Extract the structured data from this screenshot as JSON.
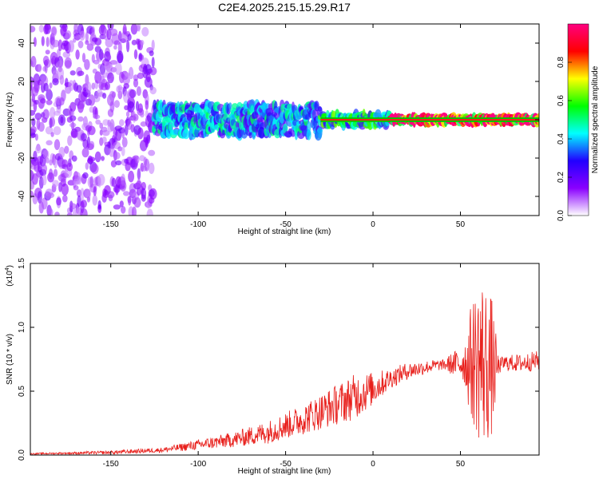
{
  "figure": {
    "title": "C2E4.2025.215.15.29.R17"
  },
  "chart_data": [
    {
      "type": "heatmap",
      "xlabel": "Height of straight line (km)",
      "ylabel": "Frequency (Hz)",
      "xlim": [
        -196,
        95
      ],
      "ylim": [
        -50,
        50
      ],
      "x_ticks": [
        "-150",
        "-100",
        "-50",
        "0",
        "50"
      ],
      "x_tick_values": [
        -150,
        -100,
        -50,
        0,
        50
      ],
      "y_ticks": [
        "-40",
        "-20",
        "0",
        "20",
        "40"
      ],
      "y_tick_values": [
        -40,
        -20,
        0,
        20,
        40
      ],
      "colorbar": {
        "label": "Normalized spectral amplitude",
        "range": [
          0,
          1
        ],
        "ticks": [
          "0.0",
          "0.2",
          "0.4",
          "0.6",
          "0.8"
        ],
        "tick_values": [
          0,
          0.2,
          0.4,
          0.6,
          0.8
        ],
        "colors": [
          "#ffffff",
          "#8a00ff",
          "#2200ff",
          "#00ffff",
          "#00ff00",
          "#ffff00",
          "#ff0000",
          "#ff0080"
        ]
      },
      "regions": [
        {
          "x": [
            -196,
            -125
          ],
          "freq_spread_hz": 50,
          "amplitude": 0.12
        },
        {
          "x": [
            -125,
            -30
          ],
          "freq_spread_hz": 8,
          "amplitude": 0.35
        },
        {
          "x": [
            -30,
            10
          ],
          "freq_spread_hz": 3,
          "amplitude": 0.45
        },
        {
          "x": [
            10,
            95
          ],
          "freq_spread_hz": 1,
          "amplitude": 0.95
        }
      ]
    },
    {
      "type": "line",
      "xlabel": "Height of straight line (km)",
      "ylabel": "SNR (10 * v/v)",
      "y_multiplier": "(x10",
      "y_multiplier_exp": "4",
      "xlim": [
        -196,
        95
      ],
      "ylim": [
        0,
        1.5
      ],
      "x_ticks": [
        "-150",
        "-100",
        "-50",
        "0",
        "50"
      ],
      "x_tick_values": [
        -150,
        -100,
        -50,
        0,
        50
      ],
      "y_ticks": [
        "0.0",
        "0.5",
        "1.0",
        "1.5"
      ],
      "y_tick_values": [
        0,
        0.5,
        1.0,
        1.5
      ],
      "series": [
        {
          "color": "#e8201c",
          "envelope": {
            "x": [
              -196,
              -150,
              -120,
              -100,
              -80,
              -60,
              -40,
              -20,
              0,
              10,
              20,
              35,
              50,
              55,
              60,
              65,
              70,
              75,
              85,
              95
            ],
            "y": [
              0.01,
              0.02,
              0.04,
              0.08,
              0.12,
              0.18,
              0.28,
              0.4,
              0.52,
              0.6,
              0.66,
              0.7,
              0.72,
              0.72,
              0.75,
              0.7,
              0.68,
              0.72,
              0.72,
              0.74
            ]
          },
          "noise_amplitude": {
            "x": [
              -196,
              -120,
              -80,
              -40,
              -10,
              10,
              40,
              52,
              56,
              62,
              68,
              72,
              95
            ],
            "y": [
              0.005,
              0.02,
              0.06,
              0.12,
              0.18,
              0.08,
              0.04,
              0.15,
              0.45,
              0.7,
              0.55,
              0.06,
              0.08
            ]
          }
        }
      ]
    }
  ]
}
